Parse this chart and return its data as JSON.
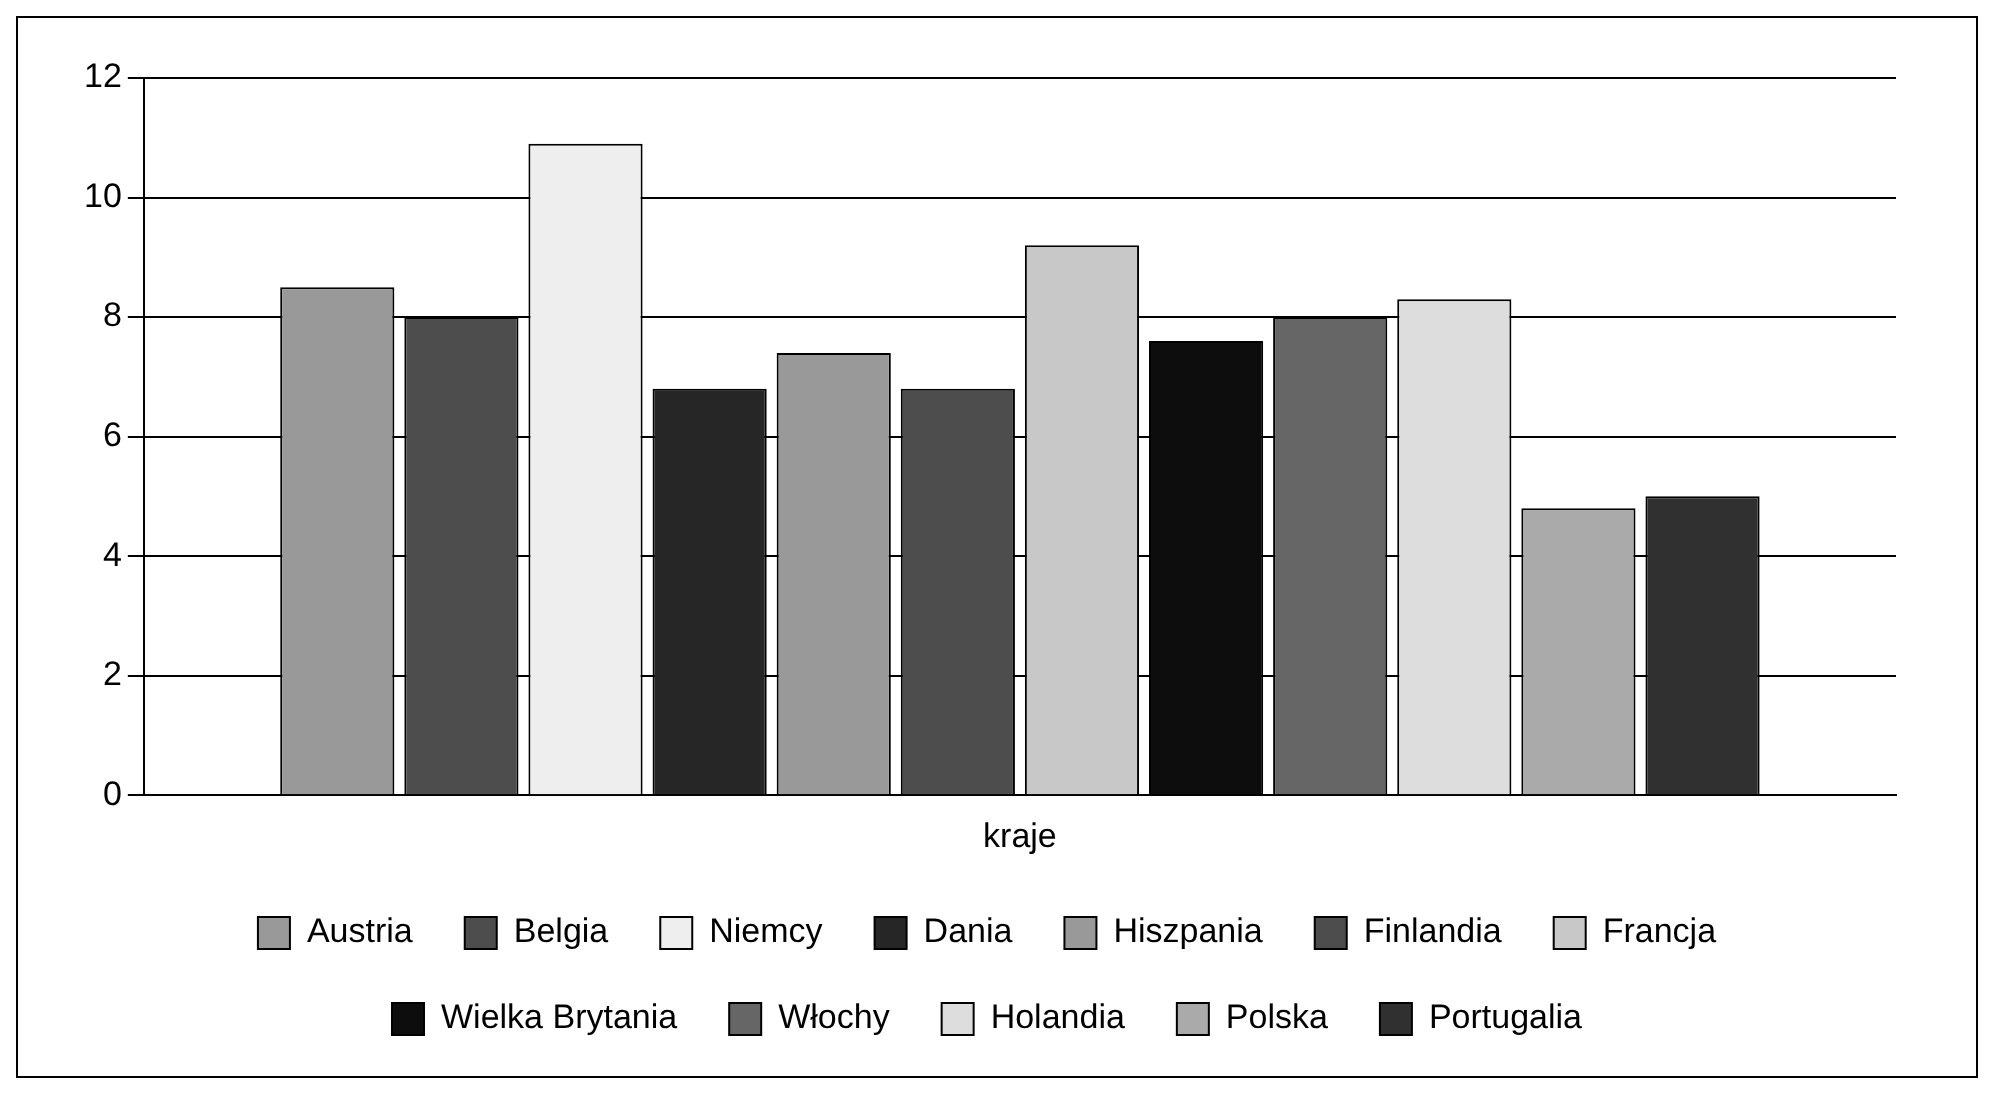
{
  "chart_data": {
    "type": "bar",
    "categories": [
      "kraje"
    ],
    "ylim": [
      0,
      12
    ],
    "yticks": [
      0,
      2,
      4,
      6,
      8,
      10,
      12
    ],
    "grid": "y",
    "legend": "bottom",
    "series": [
      {
        "name": "Austria",
        "color": "#999999",
        "values": [
          8.5
        ]
      },
      {
        "name": "Belgia",
        "color": "#4d4d4d",
        "values": [
          8.0
        ]
      },
      {
        "name": "Niemcy",
        "color": "#eeeeee",
        "values": [
          10.9
        ]
      },
      {
        "name": "Dania",
        "color": "#262626",
        "values": [
          6.8
        ]
      },
      {
        "name": "Hiszpania",
        "color": "#999999",
        "values": [
          7.4
        ]
      },
      {
        "name": "Finlandia",
        "color": "#4d4d4d",
        "values": [
          6.8
        ]
      },
      {
        "name": "Francja",
        "color": "#c8c8c8",
        "values": [
          9.2
        ]
      },
      {
        "name": "Wielka Brytania",
        "color": "#0d0d0d",
        "values": [
          7.6
        ]
      },
      {
        "name": "Włochy",
        "color": "#666666",
        "values": [
          8.0
        ]
      },
      {
        "name": "Holandia",
        "color": "#dddddd",
        "values": [
          8.3
        ]
      },
      {
        "name": "Polska",
        "color": "#aaaaaa",
        "values": [
          4.8
        ]
      },
      {
        "name": "Portugalia",
        "color": "#303030",
        "values": [
          5.0
        ]
      }
    ]
  }
}
